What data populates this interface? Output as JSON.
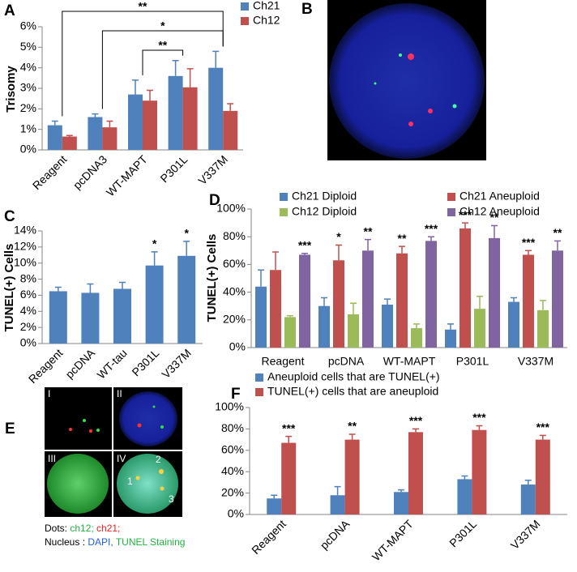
{
  "chart_data": [
    {
      "type": "bar",
      "panel": "A",
      "ylabel": "Trisomy",
      "categories": [
        "Reagent",
        "pcDNA3",
        "WT-MAPT",
        "P301L",
        "V337M"
      ],
      "series": [
        {
          "name": "Ch21",
          "color": "#4f81bd",
          "values": [
            1.2,
            1.6,
            2.7,
            3.6,
            4.0
          ],
          "errors": [
            0.2,
            0.15,
            0.7,
            0.75,
            0.8
          ]
        },
        {
          "name": "Ch12",
          "color": "#c0504d",
          "values": [
            0.65,
            1.1,
            2.4,
            3.05,
            1.9
          ],
          "errors": [
            0.05,
            0.3,
            0.5,
            0.9,
            0.35
          ]
        }
      ],
      "ylim": [
        0,
        6
      ],
      "yticks": [
        {
          "value": 0,
          "label": "0%"
        },
        {
          "value": 1,
          "label": "1%"
        },
        {
          "value": 2,
          "label": "2%"
        },
        {
          "value": 3,
          "label": "3%"
        },
        {
          "value": 4,
          "label": "4%"
        },
        {
          "value": 5,
          "label": "5%"
        },
        {
          "value": 6,
          "label": "6%"
        }
      ],
      "brackets": [
        {
          "label": "**",
          "span": [
            0,
            4
          ]
        },
        {
          "label": "*",
          "span": [
            1,
            4
          ]
        },
        {
          "label": "**",
          "span": [
            2,
            3
          ]
        }
      ]
    },
    {
      "type": "bar",
      "panel": "C",
      "ylabel": "TUNEL(+) Cells",
      "categories": [
        "Reagent",
        "pcDNA",
        "WT-tau",
        "P301L",
        "V337M"
      ],
      "color": "#4f81bd",
      "values": [
        6.5,
        6.3,
        6.8,
        9.7,
        10.9
      ],
      "errors": [
        0.5,
        1.1,
        0.8,
        1.7,
        1.8
      ],
      "significance": [
        null,
        null,
        null,
        "*",
        "*"
      ],
      "ylim": [
        0,
        14
      ],
      "yticks": [
        {
          "value": 0,
          "label": "0%"
        },
        {
          "value": 2,
          "label": "2%"
        },
        {
          "value": 4,
          "label": "4%"
        },
        {
          "value": 6,
          "label": "6%"
        },
        {
          "value": 8,
          "label": "8%"
        },
        {
          "value": 10,
          "label": "10%"
        },
        {
          "value": 12,
          "label": "12%"
        },
        {
          "value": 14,
          "label": "14%"
        }
      ]
    },
    {
      "type": "bar",
      "panel": "D",
      "ylabel": "TUNEL(+) Cells",
      "categories": [
        "Reagent",
        "pcDNA",
        "WT-MAPT",
        "P301L",
        "V337M"
      ],
      "series": [
        {
          "name": "Ch21 Diploid",
          "color": "#4f81bd",
          "values": [
            44,
            30,
            31,
            13,
            33
          ],
          "errors": [
            12,
            6,
            4,
            4,
            3
          ],
          "significance": [
            null,
            null,
            null,
            null,
            null
          ]
        },
        {
          "name": "Ch21 Aneuploid",
          "color": "#c0504d",
          "values": [
            56,
            63,
            68,
            86,
            67
          ],
          "errors": [
            13,
            11,
            5,
            4,
            3
          ],
          "significance": [
            null,
            "*",
            "**",
            "***",
            "***"
          ]
        },
        {
          "name": "Ch12 Diploid",
          "color": "#9bbb59",
          "values": [
            22,
            24,
            14,
            28,
            27
          ],
          "errors": [
            1,
            8,
            3,
            9,
            7
          ],
          "significance": [
            null,
            null,
            null,
            null,
            null
          ]
        },
        {
          "name": "Ch12 Aneuploid",
          "color": "#8064a2",
          "values": [
            67,
            70,
            77,
            79,
            70
          ],
          "errors": [
            1,
            8,
            3,
            9,
            7
          ],
          "significance": [
            "***",
            "**",
            "***",
            "**",
            "**"
          ]
        }
      ],
      "ylim": [
        0,
        100
      ],
      "yticks": [
        {
          "value": 0,
          "label": "0%"
        },
        {
          "value": 20,
          "label": "20%"
        },
        {
          "value": 40,
          "label": "40%"
        },
        {
          "value": 60,
          "label": "60%"
        },
        {
          "value": 80,
          "label": "80%"
        },
        {
          "value": 100,
          "label": "100%"
        }
      ]
    },
    {
      "type": "bar",
      "panel": "F",
      "categories": [
        "Reagent",
        "pcDNA",
        "WT-MAPT",
        "P301L",
        "V337M"
      ],
      "series": [
        {
          "name": "Aneuploid cells that are TUNEL(+)",
          "color": "#4f81bd",
          "values": [
            15,
            18,
            21,
            33,
            28
          ],
          "errors": [
            3,
            8,
            2,
            3,
            4
          ],
          "significance": [
            null,
            null,
            null,
            null,
            null
          ]
        },
        {
          "name": "TUNEL(+) cells that are aneuploid",
          "color": "#c0504d",
          "values": [
            67,
            70,
            77,
            79,
            70
          ],
          "errors": [
            6,
            5,
            3,
            4,
            4
          ],
          "significance": [
            "***",
            "**",
            "***",
            "***",
            "***"
          ]
        }
      ],
      "ylim": [
        0,
        100
      ],
      "yticks": [
        {
          "value": 0,
          "label": "0%"
        },
        {
          "value": 20,
          "label": "20%"
        },
        {
          "value": 40,
          "label": "40%"
        },
        {
          "value": 60,
          "label": "60%"
        },
        {
          "value": 80,
          "label": "80%"
        },
        {
          "value": 100,
          "label": "100%"
        }
      ]
    }
  ],
  "panel_b": {
    "panel": "B"
  },
  "panel_e": {
    "panel": "E",
    "images": [
      "I",
      "II",
      "III",
      "IV"
    ],
    "spots": [
      "1",
      "2",
      "3"
    ],
    "caption": [
      [
        "Dots: ",
        "ch12;",
        " ch21;"
      ],
      [
        "Nucleus : ",
        "DAPI,",
        " TUNEL Staining"
      ]
    ]
  }
}
